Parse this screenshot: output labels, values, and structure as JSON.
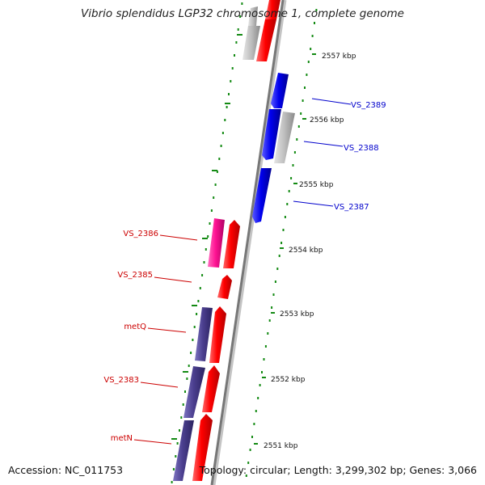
{
  "title": "Vibrio splendidus LGP32 chromosome 1, complete genome",
  "accession_text": "Accession: NC_011753",
  "summary_text": "Topology: circular; Length: 3,299,302 bp; Genes: 3,066",
  "colors": {
    "backbone": "#7a7a7a",
    "backbone_shadow": "#b8b8b8",
    "dots": "#138a13",
    "forward_gene": "#ff0000",
    "forward_alt": "#ff1493",
    "reverse_gene": "#0000ee",
    "hypothetical": "#bdbdbd",
    "operon": "#4b3f8f",
    "label_red": "#cc0000",
    "label_blue": "#0000cc"
  },
  "scale_ticks": [
    "2557 kbp",
    "2556 kbp",
    "2555 kbp",
    "2554 kbp",
    "2553 kbp",
    "2552 kbp",
    "2551 kbp"
  ],
  "gene_labels": {
    "right": [
      "VS_2389",
      "VS_2388",
      "VS_2387"
    ],
    "left": [
      "VS_2386",
      "VS_2385",
      "metQ",
      "VS_2383",
      "metN"
    ]
  }
}
